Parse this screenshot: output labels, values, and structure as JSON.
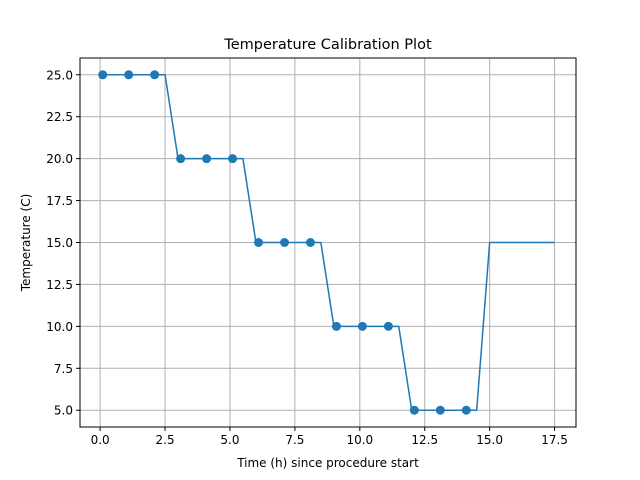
{
  "chart_data": {
    "type": "line",
    "title": "Temperature Calibration Plot",
    "xlabel": "Time (h) since procedure start",
    "ylabel": "Temperature (C)",
    "xlim": [
      -0.775,
      18.325
    ],
    "ylim": [
      4.0,
      26.0
    ],
    "grid": true,
    "legend": "none",
    "x_ticks": [
      0.0,
      2.5,
      5.0,
      7.5,
      10.0,
      12.5,
      15.0,
      17.5
    ],
    "x_tick_labels": [
      "0.0",
      "2.5",
      "5.0",
      "7.5",
      "10.0",
      "12.5",
      "15.0",
      "17.5"
    ],
    "y_ticks": [
      5.0,
      7.5,
      10.0,
      12.5,
      15.0,
      17.5,
      20.0,
      22.5,
      25.0
    ],
    "y_tick_labels": [
      "5.0",
      "7.5",
      "10.0",
      "12.5",
      "15.0",
      "17.5",
      "20.0",
      "22.5",
      "25.0"
    ],
    "series": [
      {
        "kind": "line",
        "color": "#1f77b4",
        "x": [
          0.1,
          2.5,
          3.0,
          5.5,
          6.0,
          8.5,
          9.0,
          11.5,
          12.0,
          14.5,
          15.0,
          17.5
        ],
        "y": [
          25,
          25,
          20,
          20,
          15,
          15,
          10,
          10,
          5,
          5,
          15,
          15
        ]
      },
      {
        "kind": "scatter",
        "color": "#1f77b4",
        "x": [
          0.1,
          1.1,
          2.1,
          3.1,
          4.1,
          5.1,
          6.1,
          7.1,
          8.1,
          9.1,
          10.1,
          11.1,
          12.1,
          13.1,
          14.1
        ],
        "y": [
          25,
          25,
          25,
          20,
          20,
          20,
          15,
          15,
          15,
          10,
          10,
          10,
          5,
          5,
          5
        ]
      }
    ]
  }
}
